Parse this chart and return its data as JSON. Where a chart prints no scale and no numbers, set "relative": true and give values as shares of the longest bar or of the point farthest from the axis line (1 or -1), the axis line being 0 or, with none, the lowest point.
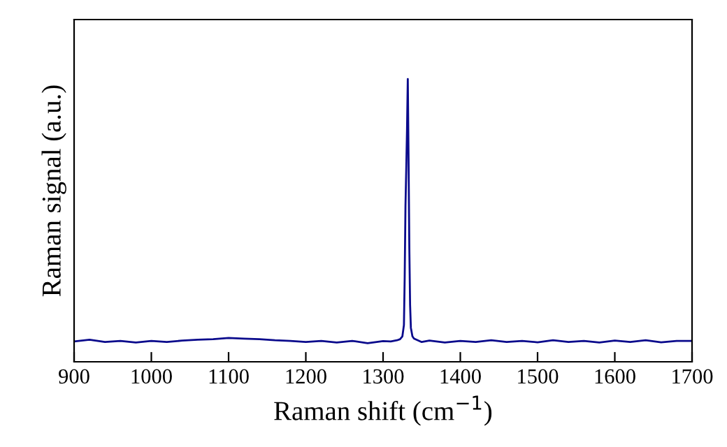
{
  "chart_data": {
    "type": "line",
    "xlabel": "Raman shift (cm$^{−1}$)",
    "ylabel": "Raman signal (a.u.)",
    "relative": true,
    "xlim": [
      900,
      1700
    ],
    "xticks": [
      900,
      1000,
      1100,
      1200,
      1300,
      1400,
      1500,
      1600,
      1700
    ],
    "grid": false,
    "legend": false,
    "series": [
      {
        "color": "#0a0a8c",
        "x": [
          900,
          920,
          940,
          960,
          980,
          1000,
          1020,
          1040,
          1060,
          1080,
          1100,
          1120,
          1140,
          1160,
          1180,
          1200,
          1220,
          1240,
          1260,
          1280,
          1300,
          1310,
          1318,
          1322,
          1325,
          1327,
          1328,
          1329,
          1330,
          1331,
          1332,
          1333,
          1334,
          1335,
          1336,
          1338,
          1340,
          1345,
          1350,
          1360,
          1380,
          1400,
          1420,
          1440,
          1460,
          1480,
          1500,
          1520,
          1540,
          1560,
          1580,
          1600,
          1620,
          1640,
          1660,
          1680,
          1700
        ],
        "values": [
          0.072,
          0.078,
          0.07,
          0.074,
          0.068,
          0.074,
          0.07,
          0.075,
          0.078,
          0.08,
          0.084,
          0.082,
          0.08,
          0.076,
          0.074,
          0.07,
          0.074,
          0.068,
          0.074,
          0.066,
          0.073,
          0.072,
          0.076,
          0.08,
          0.09,
          0.13,
          0.3,
          0.55,
          0.68,
          0.82,
          1.0,
          0.72,
          0.4,
          0.2,
          0.12,
          0.09,
          0.082,
          0.076,
          0.07,
          0.075,
          0.068,
          0.074,
          0.07,
          0.076,
          0.07,
          0.074,
          0.069,
          0.076,
          0.07,
          0.074,
          0.068,
          0.075,
          0.07,
          0.076,
          0.069,
          0.074,
          0.074
        ]
      }
    ]
  }
}
